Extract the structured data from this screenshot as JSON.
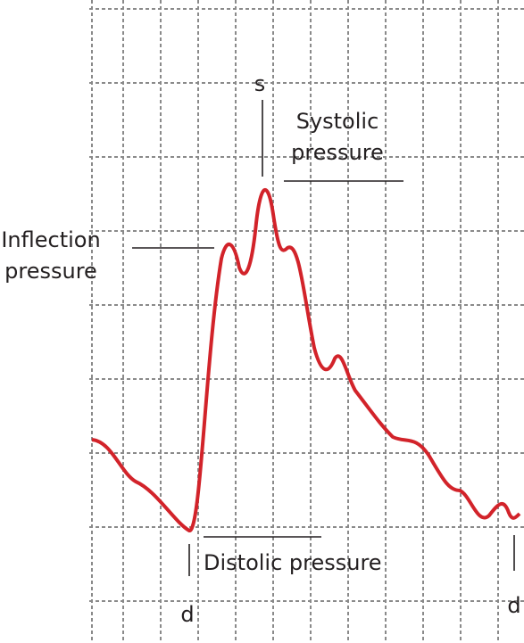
{
  "labels": {
    "s": "s",
    "systolic": [
      "Systolic",
      "pressure"
    ],
    "inflection": [
      "Inflection",
      "pressure"
    ],
    "diastolic": "Distolic pressure",
    "d_left": "d",
    "d_right": "d"
  }
}
